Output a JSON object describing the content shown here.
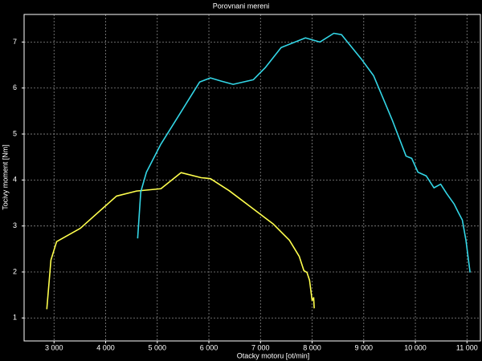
{
  "chart_data": {
    "type": "line",
    "title": "Porovnani mereni",
    "x_label": "Otacky motoru [ot/min]",
    "y_label": "Tocivy moment [Nm]",
    "xlim": [
      2420,
      11260
    ],
    "ylim": [
      0.5,
      7.6
    ],
    "xticks": [
      {
        "value": 3000,
        "label": "3 000"
      },
      {
        "value": 4000,
        "label": "4 000"
      },
      {
        "value": 5000,
        "label": "5 000"
      },
      {
        "value": 6000,
        "label": "6 000"
      },
      {
        "value": 7000,
        "label": "7 000"
      },
      {
        "value": 8000,
        "label": "8 000"
      },
      {
        "value": 9000,
        "label": "9 000"
      },
      {
        "value": 10000,
        "label": "10 000"
      },
      {
        "value": 11000,
        "label": "11 000"
      }
    ],
    "yticks": [
      1,
      2,
      3,
      4,
      5,
      6,
      7
    ],
    "grid": true,
    "series": [
      {
        "color": "#ffff4d",
        "x": [
          2860,
          2940,
          3050,
          3510,
          3980,
          4210,
          4600,
          5070,
          5460,
          5850,
          6030,
          6390,
          6780,
          7250,
          7560,
          7750,
          7840,
          7900,
          7950,
          8000,
          8030,
          8040
        ],
        "values": [
          1.19,
          2.26,
          2.66,
          2.95,
          3.42,
          3.65,
          3.76,
          3.81,
          4.16,
          4.05,
          4.03,
          3.77,
          3.44,
          3.04,
          2.69,
          2.34,
          2.03,
          1.99,
          1.82,
          1.38,
          1.44,
          1.21
        ]
      },
      {
        "color": "#33d6e6",
        "x": [
          4620,
          4680,
          4790,
          5070,
          5460,
          5820,
          6030,
          6240,
          6470,
          6860,
          7090,
          7400,
          7870,
          8150,
          8420,
          8570,
          8960,
          9190,
          9550,
          9820,
          9930,
          10050,
          10210,
          10360,
          10490,
          10610,
          10750,
          10830,
          10910,
          10980,
          11060
        ],
        "values": [
          2.73,
          3.74,
          4.17,
          4.78,
          5.48,
          6.13,
          6.22,
          6.15,
          6.08,
          6.18,
          6.44,
          6.88,
          7.09,
          7.0,
          7.19,
          7.16,
          6.62,
          6.27,
          5.31,
          4.52,
          4.47,
          4.17,
          4.09,
          3.83,
          3.91,
          3.7,
          3.48,
          3.3,
          3.13,
          2.69,
          1.99
        ]
      }
    ]
  }
}
